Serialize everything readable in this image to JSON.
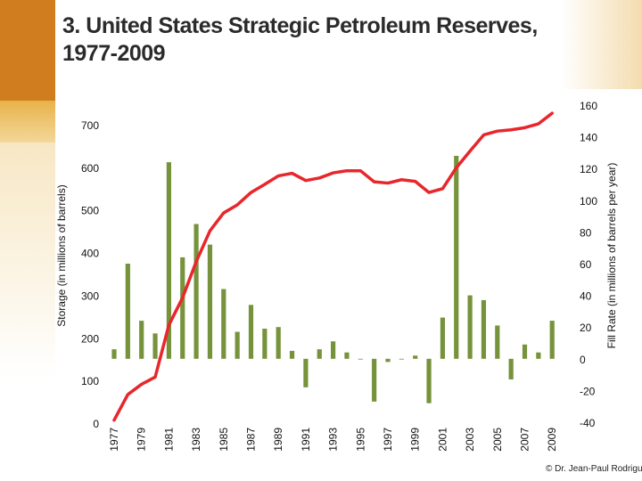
{
  "title": "3. United States Strategic Petroleum Reserves, 1977-2009",
  "credit": "© Dr. Jean-Paul Rodrigue",
  "colors": {
    "line": "#e8262b",
    "bars": "#76933c",
    "accent": "#d07d1f"
  },
  "chart_data": {
    "type": "bar+line",
    "title": "3. United States Strategic Petroleum Reserves, 1977-2009",
    "x": [
      1977,
      1978,
      1979,
      1980,
      1981,
      1982,
      1983,
      1984,
      1985,
      1986,
      1987,
      1988,
      1989,
      1990,
      1991,
      1992,
      1993,
      1994,
      1995,
      1996,
      1997,
      1998,
      1999,
      2000,
      2001,
      2002,
      2003,
      2004,
      2005,
      2006,
      2007,
      2008,
      2009
    ],
    "x_tick_labels": [
      "1977",
      "1979",
      "1981",
      "1983",
      "1985",
      "1987",
      "1989",
      "1991",
      "1993",
      "1995",
      "1997",
      "1999",
      "2001",
      "2003",
      "2005",
      "2007",
      "2009"
    ],
    "left_axis": {
      "label": "Storage (in millions of barrels)",
      "ylim": [
        0,
        700
      ],
      "ticks": [
        0,
        100,
        200,
        300,
        400,
        500,
        600,
        700
      ]
    },
    "right_axis": {
      "label": "Fill Rate (in millions of barrels per year)",
      "ylim": [
        -40,
        160
      ],
      "ticks": [
        -40,
        -20,
        0,
        20,
        40,
        60,
        80,
        100,
        120,
        140,
        160
      ]
    },
    "series": [
      {
        "name": "Storage",
        "type": "line",
        "axis": "left",
        "values": [
          7,
          67,
          91,
          108,
          230,
          294,
          379,
          451,
          493,
          512,
          541,
          560,
          580,
          586,
          569,
          575,
          587,
          592,
          592,
          566,
          563,
          571,
          567,
          541,
          550,
          599,
          638,
          676,
          685,
          688,
          693,
          702,
          727
        ]
      },
      {
        "name": "Fill Rate",
        "type": "bar",
        "axis": "right",
        "values": [
          6,
          60,
          24,
          16,
          124,
          64,
          85,
          72,
          44,
          17,
          34,
          19,
          20,
          5,
          -18,
          6,
          11,
          4,
          0,
          -27,
          -2,
          0,
          2,
          -28,
          26,
          128,
          40,
          37,
          21,
          -13,
          9,
          4,
          24
        ]
      }
    ]
  }
}
